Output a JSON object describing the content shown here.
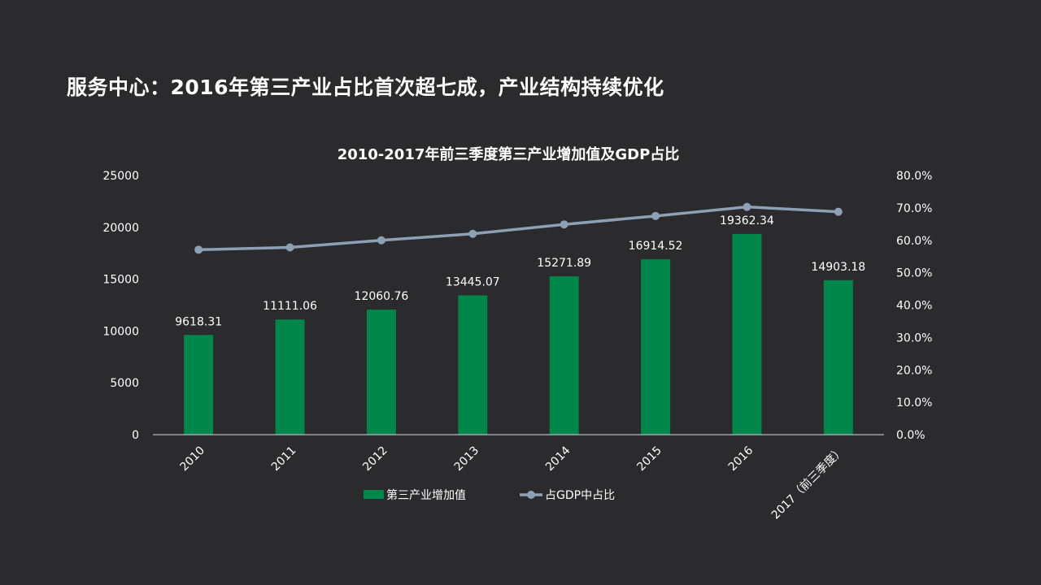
{
  "page": {
    "title": "服务中心：2016年第三产业占比首次超七成，产业结构持续优化"
  },
  "colors": {
    "background": "#2b2b2d",
    "bar": "#00854a",
    "line": "#8da0b6",
    "axis": "#d9d9d9",
    "text": "#ffffff"
  },
  "chart_data": {
    "type": "bar",
    "title": "2010-2017年前三季度第三产业增加值及GDP占比",
    "categories": [
      "2010",
      "2011",
      "2012",
      "2013",
      "2014",
      "2015",
      "2016",
      "2017（前三季度）"
    ],
    "series": [
      {
        "name": "第三产业增加值",
        "type": "bar",
        "axis": "left",
        "values": [
          9618.31,
          11111.06,
          12060.76,
          13445.07,
          15271.89,
          16914.52,
          19362.34,
          14903.18
        ],
        "labels": [
          "9618.31",
          "11111.06",
          "12060.76",
          "13445.07",
          "15271.89",
          "16914.52",
          "19362.34",
          "14903.18"
        ]
      },
      {
        "name": "占GDP中占比",
        "type": "line",
        "axis": "right",
        "values": [
          57.1,
          57.8,
          60.0,
          62.0,
          64.9,
          67.5,
          70.3,
          68.8
        ]
      }
    ],
    "y_left": {
      "min": 0,
      "max": 25000,
      "ticks": [
        "0",
        "5000",
        "10000",
        "15000",
        "20000",
        "25000"
      ]
    },
    "y_right": {
      "min": 0,
      "max": 80,
      "ticks": [
        "0.0%",
        "10.0%",
        "20.0%",
        "30.0%",
        "40.0%",
        "50.0%",
        "60.0%",
        "70.0%",
        "80.0%"
      ]
    },
    "legend_position": "bottom",
    "grid": false
  }
}
